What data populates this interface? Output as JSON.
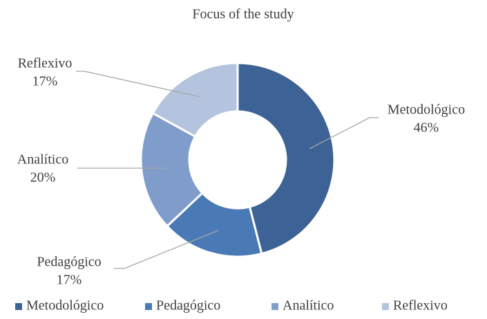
{
  "chart_data": {
    "type": "pie",
    "title": "Focus of the study",
    "categories": [
      "Metodológico",
      "Pedagógico",
      "Analítico",
      "Reflexivo"
    ],
    "values": [
      46,
      17,
      20,
      17
    ],
    "value_labels": [
      "46%",
      "17%",
      "20%",
      "17%"
    ],
    "colors": [
      "#3d6396",
      "#4a7ab5",
      "#7f9ccb",
      "#b4c3de"
    ],
    "legend": "bottom"
  }
}
